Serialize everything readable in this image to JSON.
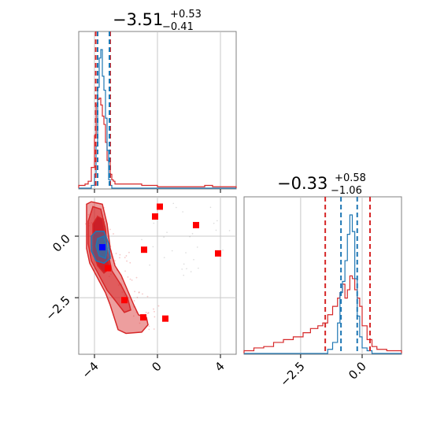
{
  "chart_data": {
    "type": "corner",
    "panels": [
      {
        "id": "hist_param1",
        "type": "histogram",
        "title": {
          "value": "−3.51",
          "plus": "+0.53",
          "minus": "−0.41"
        },
        "xlim": [
          -5,
          5
        ],
        "xgrid": [
          -4,
          0,
          4
        ],
        "colors": {
          "blue": "#1f77b4",
          "red": "#d62728"
        },
        "bins": [
          -5.0,
          -4.8,
          -4.6,
          -4.4,
          -4.2,
          -4.0,
          -3.9,
          -3.8,
          -3.7,
          -3.6,
          -3.5,
          -3.4,
          -3.3,
          -3.2,
          -3.1,
          -3.0,
          -2.9,
          -2.8,
          -2.7,
          -2.5,
          -2.0,
          -1.0,
          0.0,
          1.0,
          2.0,
          3.0,
          3.5,
          4.0,
          5.0
        ],
        "blue_counts": [
          0,
          0,
          0,
          0,
          0.02,
          0.1,
          0.3,
          0.72,
          0.93,
          0.99,
          0.8,
          0.7,
          0.5,
          0.27,
          0.06,
          0.02,
          0,
          0,
          0,
          0,
          0,
          0,
          0,
          0,
          0,
          0,
          0,
          0
        ],
        "red_counts": [
          0.02,
          0.02,
          0.03,
          0.05,
          0.15,
          0.38,
          0.6,
          0.64,
          0.65,
          0.6,
          0.52,
          0.46,
          0.33,
          0.2,
          0.19,
          0.1,
          0.06,
          0.05,
          0.03,
          0.03,
          0.03,
          0.02,
          0.01,
          0.01,
          0.01,
          0.02,
          0.01,
          0.01
        ],
        "red_lines": [
          -3.92,
          -3.0
        ],
        "blue_lines": [
          -3.8,
          -3.05
        ]
      },
      {
        "id": "hist_param2",
        "type": "histogram",
        "title": {
          "value": "−0.33",
          "plus": "+0.58",
          "minus": "−1.06"
        },
        "xlim": [
          -4.8,
          1.6
        ],
        "xticks": [
          -2.5,
          0.0
        ],
        "xtick_labels": [
          "−2.5",
          "0.0"
        ],
        "xgrid": [
          -2.5,
          0.0
        ],
        "bins": [
          -4.8,
          -4.4,
          -4.0,
          -3.6,
          -3.2,
          -2.8,
          -2.4,
          -2.1,
          -1.8,
          -1.6,
          -1.4,
          -1.2,
          -1.0,
          -0.9,
          -0.8,
          -0.7,
          -0.6,
          -0.5,
          -0.4,
          -0.3,
          -0.2,
          -0.1,
          0.0,
          0.2,
          0.4,
          0.6,
          1.0,
          1.4,
          1.6
        ],
        "blue_counts": [
          0,
          0,
          0,
          0,
          0,
          0,
          0,
          0,
          0,
          0,
          0.03,
          0.08,
          0.22,
          0.44,
          0.52,
          0.67,
          0.86,
          1.0,
          0.88,
          0.54,
          0.27,
          0.12,
          0.04,
          0.02,
          0,
          0,
          0,
          0
        ],
        "red_counts": [
          0.02,
          0.04,
          0.05,
          0.08,
          0.1,
          0.12,
          0.15,
          0.18,
          0.2,
          0.22,
          0.28,
          0.34,
          0.4,
          0.44,
          0.5,
          0.4,
          0.46,
          0.56,
          0.54,
          0.46,
          0.4,
          0.34,
          0.2,
          0.1,
          0.05,
          0.03,
          0.02,
          0.02
        ],
        "red_lines": [
          -1.5,
          0.32
        ],
        "blue_lines": [
          -0.86,
          -0.2
        ]
      },
      {
        "id": "scatter_2d",
        "type": "scatter_contour",
        "xlim": [
          -5,
          5
        ],
        "ylim": [
          -4.8,
          1.6
        ],
        "xticks": [
          -4,
          0,
          4
        ],
        "xtick_labels": [
          "−4",
          "0",
          "4"
        ],
        "yticks": [
          0.0,
          -2.5
        ],
        "ytick_labels": [
          "0.0",
          "−2.5"
        ],
        "xgrid": [
          -4,
          0,
          4
        ],
        "ygrid": [
          0.0,
          -2.5
        ],
        "red_squares": [
          [
            -3.15,
            -1.3
          ],
          [
            -2.1,
            -2.6
          ],
          [
            -0.9,
            -3.3
          ],
          [
            0.5,
            -3.35
          ],
          [
            -0.85,
            -0.55
          ],
          [
            -0.15,
            0.8
          ],
          [
            0.15,
            1.2
          ],
          [
            2.45,
            0.45
          ],
          [
            3.85,
            -0.7
          ]
        ],
        "blue_square": [
          -3.5,
          -0.45
        ],
        "contours": {
          "outer": [
            [
              -4.5,
              0.6
            ],
            [
              -4.5,
              1.3
            ],
            [
              -4.2,
              1.4
            ],
            [
              -3.5,
              1.3
            ],
            [
              -3.2,
              0.5
            ],
            [
              -3.0,
              -0.5
            ],
            [
              -2.7,
              -1.2
            ],
            [
              -2.3,
              -1.6
            ],
            [
              -1.9,
              -2.2
            ],
            [
              -1.5,
              -2.8
            ],
            [
              -1.2,
              -3.2
            ],
            [
              -0.7,
              -3.3
            ],
            [
              -0.6,
              -3.6
            ],
            [
              -1.0,
              -3.9
            ],
            [
              -2.0,
              -3.95
            ],
            [
              -2.5,
              -3.8
            ],
            [
              -2.8,
              -3.2
            ],
            [
              -3.0,
              -2.8
            ],
            [
              -3.3,
              -2.3
            ],
            [
              -3.8,
              -1.7
            ],
            [
              -4.3,
              -1.1
            ],
            [
              -4.5,
              -0.5
            ]
          ],
          "middle": [
            [
              -4.4,
              0.6
            ],
            [
              -4.1,
              1.2
            ],
            [
              -3.6,
              1.1
            ],
            [
              -3.3,
              0.3
            ],
            [
              -3.2,
              -0.5
            ],
            [
              -2.9,
              -1.4
            ],
            [
              -2.3,
              -2.0
            ],
            [
              -1.9,
              -2.5
            ],
            [
              -1.7,
              -3.0
            ],
            [
              -2.1,
              -3.1
            ],
            [
              -2.7,
              -2.6
            ],
            [
              -3.2,
              -2.2
            ],
            [
              -3.7,
              -1.6
            ],
            [
              -4.2,
              -1.0
            ],
            [
              -4.4,
              -0.3
            ]
          ],
          "inner": [
            [
              -4.1,
              0.5
            ],
            [
              -3.8,
              0.8
            ],
            [
              -3.5,
              0.7
            ],
            [
              -3.3,
              0.0
            ],
            [
              -3.2,
              -0.8
            ],
            [
              -3.0,
              -1.3
            ],
            [
              -3.4,
              -1.5
            ],
            [
              -3.8,
              -1.2
            ],
            [
              -4.1,
              -0.6
            ]
          ],
          "blue_outer": [
            [
              -4.2,
              0.0
            ],
            [
              -3.9,
              0.2
            ],
            [
              -3.4,
              0.2
            ],
            [
              -3.1,
              -0.3
            ],
            [
              -3.0,
              -0.9
            ],
            [
              -3.4,
              -1.1
            ],
            [
              -3.9,
              -1.0
            ],
            [
              -4.2,
              -0.6
            ]
          ],
          "blue_inner": [
            [
              -3.8,
              -0.1
            ],
            [
              -3.4,
              0.0
            ],
            [
              -3.2,
              -0.5
            ],
            [
              -3.3,
              -0.9
            ],
            [
              -3.7,
              -0.8
            ],
            [
              -3.9,
              -0.4
            ]
          ]
        }
      }
    ]
  }
}
